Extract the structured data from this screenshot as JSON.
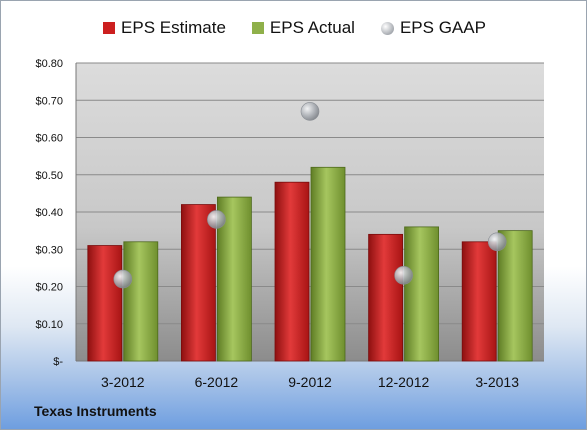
{
  "chart_data": {
    "type": "bar",
    "categories": [
      "3-2012",
      "6-2012",
      "9-2012",
      "12-2012",
      "3-2013"
    ],
    "series": [
      {
        "name": "EPS Estimate",
        "kind": "bar",
        "color": "#cc1f1f",
        "values": [
          0.31,
          0.42,
          0.48,
          0.34,
          0.32
        ]
      },
      {
        "name": "EPS Actual",
        "kind": "bar",
        "color": "#8fb04a",
        "values": [
          0.32,
          0.44,
          0.52,
          0.36,
          0.35
        ]
      },
      {
        "name": "EPS GAAP",
        "kind": "marker",
        "color": "#b8bcc2",
        "values": [
          0.22,
          0.38,
          0.67,
          0.23,
          0.32
        ]
      }
    ],
    "ylim": [
      0,
      0.8
    ],
    "yticks": [
      0,
      0.1,
      0.2,
      0.3,
      0.4,
      0.5,
      0.6,
      0.7,
      0.8
    ],
    "ytick_labels": [
      "$-",
      "$0.10",
      "$0.20",
      "$0.30",
      "$0.40",
      "$0.50",
      "$0.60",
      "$0.70",
      "$0.80"
    ],
    "grid": true,
    "legend_position": "top"
  },
  "footer": {
    "company": "Texas Instruments"
  }
}
